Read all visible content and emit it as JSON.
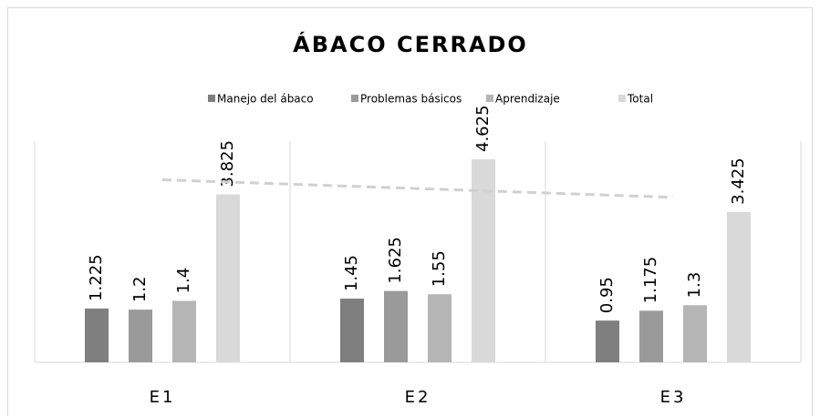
{
  "chart_data": {
    "type": "bar",
    "title": "ÁBACO CERRADO",
    "categories": [
      "E1",
      "E2",
      "E3"
    ],
    "series": [
      {
        "name": "Manejo del ábaco",
        "color": "#7f7f7f",
        "values": [
          1.225,
          1.45,
          0.95
        ]
      },
      {
        "name": "Problemas básicos",
        "color": "#9a9a9a",
        "values": [
          1.2,
          1.625,
          1.175
        ]
      },
      {
        "name": "Aprendizaje",
        "color": "#b5b5b5",
        "values": [
          1.4,
          1.55,
          1.3
        ]
      },
      {
        "name": "Total",
        "color": "#d9d9d9",
        "values": [
          3.825,
          4.625,
          3.425
        ]
      }
    ],
    "trendline": {
      "series": 3,
      "color": "#d0d0d0",
      "dashed": true
    },
    "legend": "top"
  }
}
